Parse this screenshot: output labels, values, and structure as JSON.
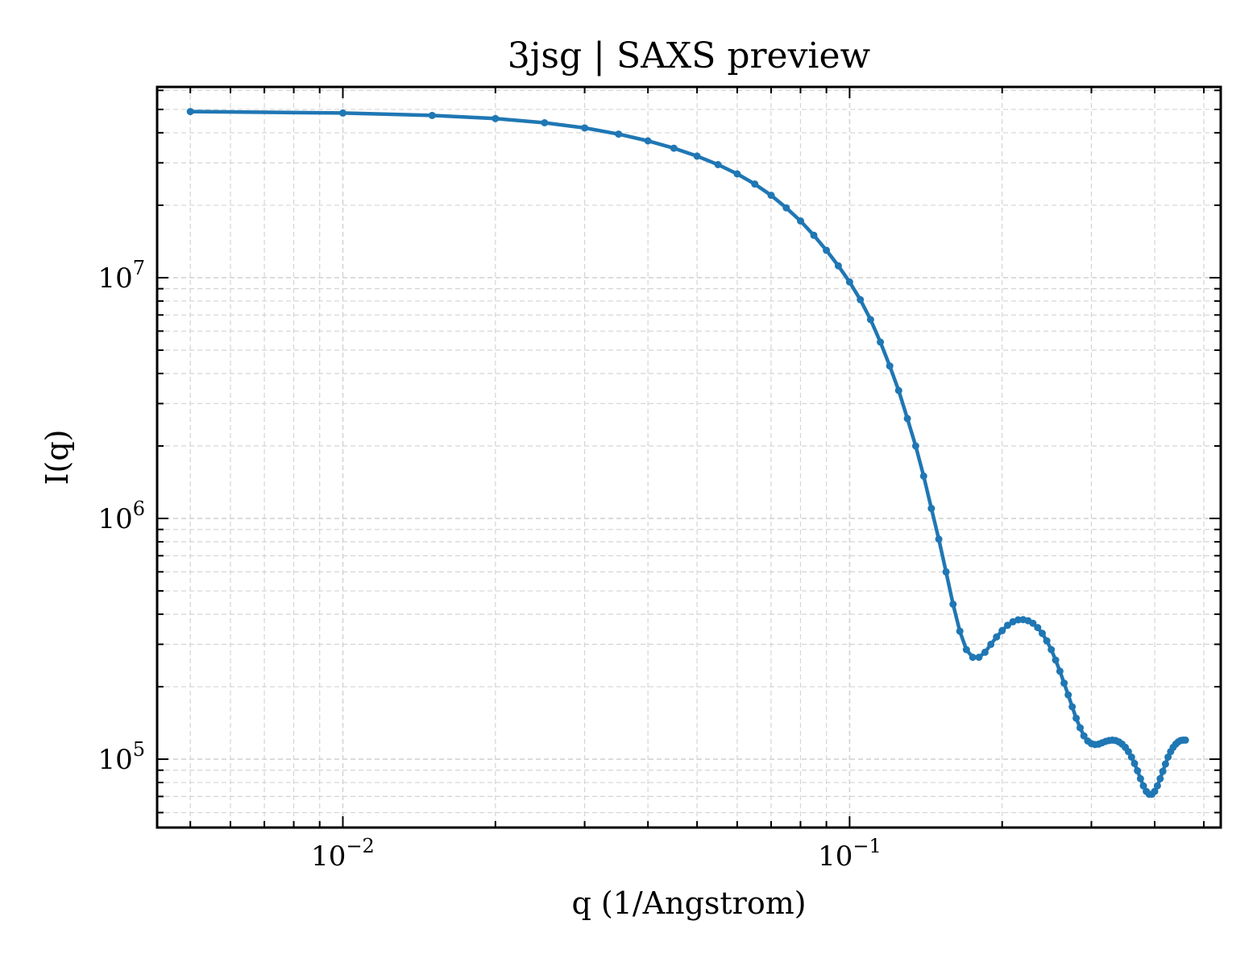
{
  "chart_data": {
    "type": "line",
    "title": "3jsg | SAXS preview",
    "xlabel": "q (1/Angstrom)",
    "ylabel": "I(q)",
    "xscale": "log",
    "yscale": "log",
    "xlim": [
      0.0043,
      0.54
    ],
    "ylim": [
      52000,
      62000000
    ],
    "grid": true,
    "legend": "none",
    "x_ticks": [
      {
        "value": 0.01,
        "base": "10",
        "exp": "−2"
      },
      {
        "value": 0.1,
        "base": "10",
        "exp": "−1"
      }
    ],
    "y_ticks": [
      {
        "value": 100000,
        "base": "10",
        "exp": "5"
      },
      {
        "value": 1000000,
        "base": "10",
        "exp": "6"
      },
      {
        "value": 10000000,
        "base": "10",
        "exp": "7"
      }
    ],
    "series": [
      {
        "color": "#1f77b4",
        "marker": "dot",
        "points": [
          [
            0.005,
            49000000
          ],
          [
            0.01,
            48300000
          ],
          [
            0.015,
            47200000
          ],
          [
            0.02,
            45800000
          ],
          [
            0.025,
            44000000
          ],
          [
            0.03,
            41900000
          ],
          [
            0.035,
            39500000
          ],
          [
            0.04,
            37000000
          ],
          [
            0.045,
            34500000
          ],
          [
            0.05,
            32000000
          ],
          [
            0.055,
            29500000
          ],
          [
            0.06,
            27000000
          ],
          [
            0.065,
            24500000
          ],
          [
            0.07,
            22000000
          ],
          [
            0.075,
            19500000
          ],
          [
            0.08,
            17200000
          ],
          [
            0.085,
            15000000
          ],
          [
            0.09,
            13000000
          ],
          [
            0.095,
            11200000
          ],
          [
            0.1,
            9600000
          ],
          [
            0.105,
            8100000
          ],
          [
            0.11,
            6700000
          ],
          [
            0.115,
            5400000
          ],
          [
            0.12,
            4300000
          ],
          [
            0.125,
            3400000
          ],
          [
            0.13,
            2600000
          ],
          [
            0.135,
            2000000
          ],
          [
            0.14,
            1500000
          ],
          [
            0.145,
            1100000
          ],
          [
            0.15,
            820000
          ],
          [
            0.155,
            600000
          ],
          [
            0.16,
            440000
          ],
          [
            0.165,
            340000
          ],
          [
            0.17,
            285000
          ],
          [
            0.175,
            265000
          ],
          [
            0.18,
            265000
          ],
          [
            0.185,
            278000
          ],
          [
            0.19,
            300000
          ],
          [
            0.195,
            322000
          ],
          [
            0.2,
            342000
          ],
          [
            0.205,
            360000
          ],
          [
            0.21,
            372000
          ],
          [
            0.215,
            379000
          ],
          [
            0.22,
            380000
          ],
          [
            0.225,
            376000
          ],
          [
            0.23,
            367000
          ],
          [
            0.235,
            352000
          ],
          [
            0.24,
            333000
          ],
          [
            0.245,
            310000
          ],
          [
            0.25,
            285000
          ],
          [
            0.255,
            258000
          ],
          [
            0.26,
            232000
          ],
          [
            0.265,
            207000
          ],
          [
            0.27,
            185000
          ],
          [
            0.275,
            165000
          ],
          [
            0.28,
            148000
          ],
          [
            0.285,
            135000
          ],
          [
            0.29,
            125000
          ],
          [
            0.295,
            119000
          ],
          [
            0.3,
            116000
          ],
          [
            0.305,
            115000
          ],
          [
            0.31,
            115500
          ],
          [
            0.315,
            117000
          ],
          [
            0.32,
            118500
          ],
          [
            0.325,
            119500
          ],
          [
            0.33,
            120000
          ],
          [
            0.335,
            119500
          ],
          [
            0.34,
            118000
          ],
          [
            0.345,
            115500
          ],
          [
            0.35,
            112000
          ],
          [
            0.355,
            107500
          ],
          [
            0.36,
            102000
          ],
          [
            0.365,
            96000
          ],
          [
            0.37,
            89500
          ],
          [
            0.375,
            83000
          ],
          [
            0.38,
            77500
          ],
          [
            0.385,
            73500
          ],
          [
            0.39,
            71500
          ],
          [
            0.395,
            71500
          ],
          [
            0.4,
            73500
          ],
          [
            0.405,
            77500
          ],
          [
            0.41,
            83000
          ],
          [
            0.415,
            89000
          ],
          [
            0.42,
            95500
          ],
          [
            0.425,
            102000
          ],
          [
            0.43,
            107500
          ],
          [
            0.435,
            112000
          ],
          [
            0.44,
            115500
          ],
          [
            0.445,
            118000
          ],
          [
            0.45,
            119500
          ],
          [
            0.455,
            120000
          ],
          [
            0.46,
            120000
          ]
        ]
      }
    ]
  }
}
